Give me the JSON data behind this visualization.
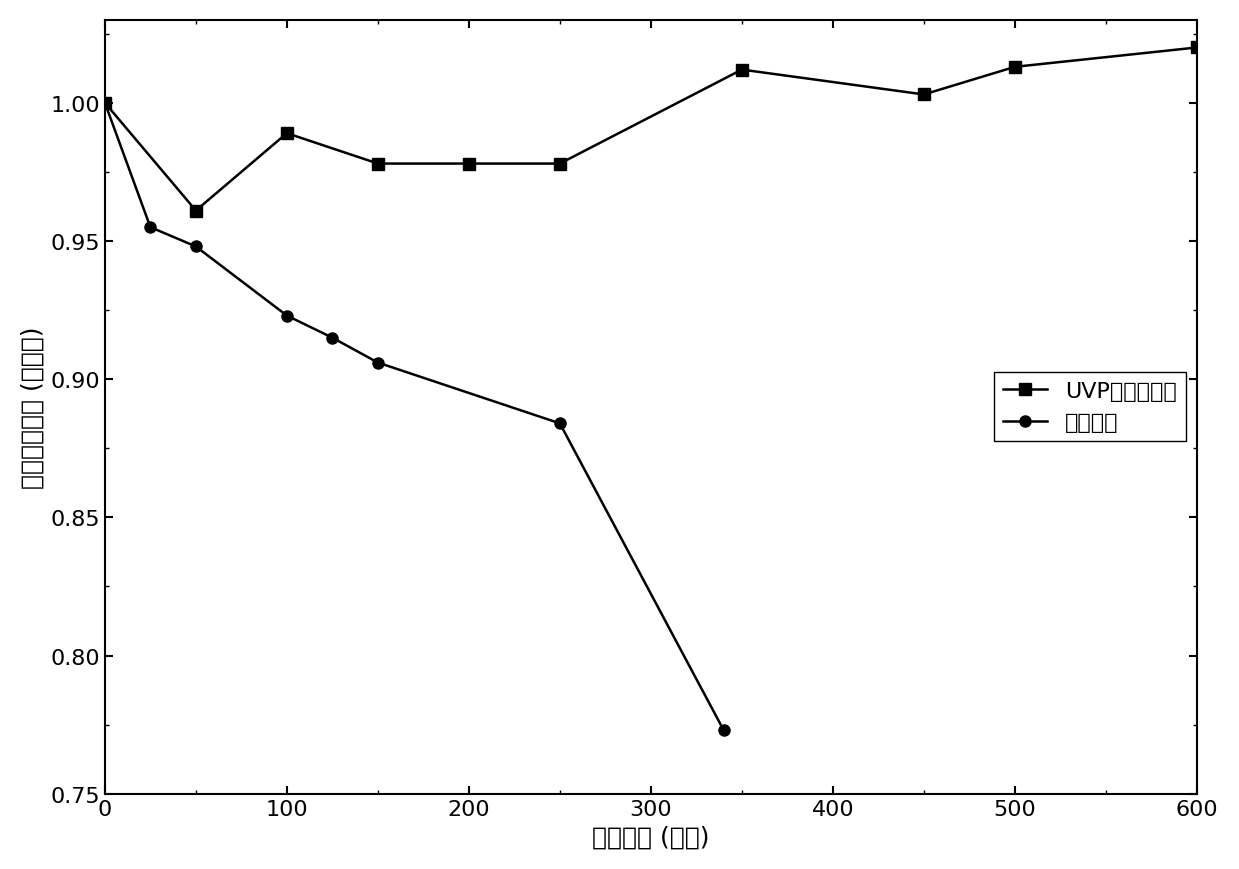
{
  "uvp_x": [
    0,
    50,
    100,
    150,
    200,
    250,
    350,
    450,
    500,
    600
  ],
  "uvp_y": [
    1.0,
    0.961,
    0.989,
    0.978,
    0.978,
    0.978,
    1.012,
    1.003,
    1.013,
    1.02
  ],
  "std_x": [
    0,
    25,
    50,
    100,
    125,
    150,
    250,
    340
  ],
  "std_y": [
    1.0,
    0.955,
    0.948,
    0.923,
    0.915,
    0.906,
    0.884,
    0.773
  ],
  "uvp_label": "UVP紫外吸光层",
  "std_label": "标准工艺",
  "xlabel": "光照时间 (小时)",
  "ylabel": "能量转化效率 (标准化)",
  "xlim": [
    0,
    600
  ],
  "ylim": [
    0.75,
    1.03
  ],
  "yticks": [
    0.75,
    0.8,
    0.85,
    0.9,
    0.95,
    1.0
  ],
  "xticks": [
    0,
    100,
    200,
    300,
    400,
    500,
    600
  ],
  "line_color": "#000000",
  "marker_square": "s",
  "marker_circle": "o",
  "markersize": 8,
  "linewidth": 1.8,
  "legend_fontsize": 16,
  "axis_fontsize": 18,
  "tick_fontsize": 16,
  "background_color": "#ffffff"
}
